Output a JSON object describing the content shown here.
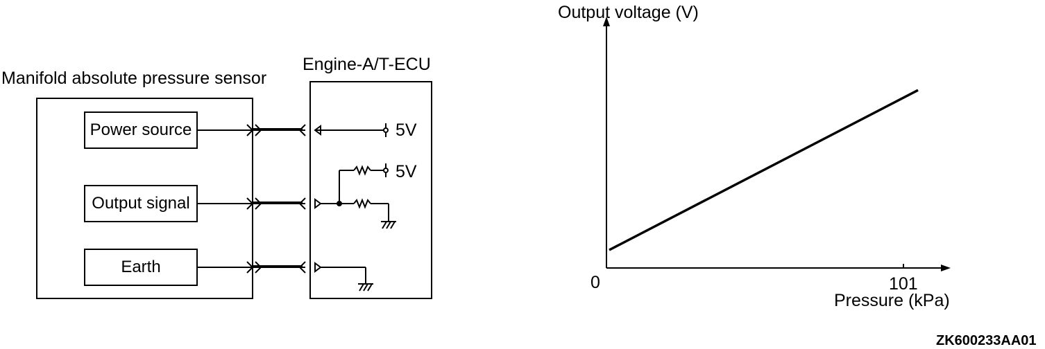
{
  "circuit": {
    "sensor_title": "Manifold absolute pressure sensor",
    "ecu_title": "Engine-A/T-ECU",
    "terminals": {
      "power": "Power source",
      "output": "Output signal",
      "earth": "Earth"
    },
    "supply_label_1": "5V",
    "supply_label_2": "5V"
  },
  "graph": {
    "ylabel": "Output voltage (V)",
    "xlabel": "Pressure (kPa)",
    "x_origin_label": "0",
    "x_tick_label": "101"
  },
  "chart_data": {
    "type": "line",
    "xlabel": "Pressure (kPa)",
    "ylabel": "Output voltage (V)",
    "x_ticks": [
      "0",
      "101"
    ],
    "series": [
      {
        "x": [
          0,
          105
        ],
        "y": [
          0.15,
          1.48
        ]
      }
    ],
    "xlim": [
      0,
      115
    ],
    "ylim": [
      0,
      2
    ],
    "grid": false
  },
  "figure_code": "ZK600233AA01"
}
